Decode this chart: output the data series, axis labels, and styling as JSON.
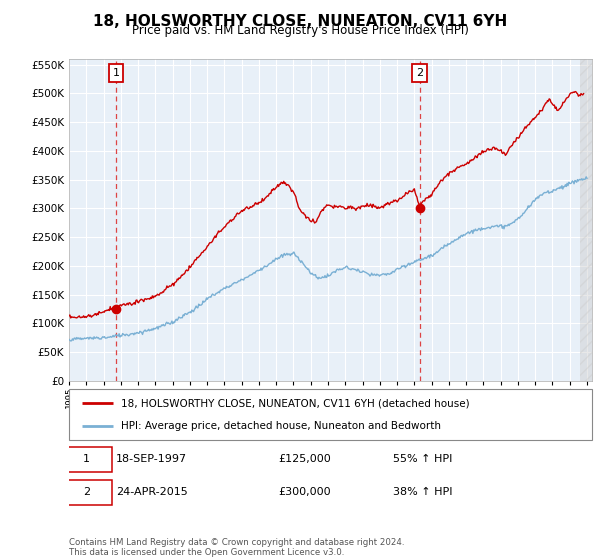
{
  "title": "18, HOLSWORTHY CLOSE, NUNEATON, CV11 6YH",
  "subtitle": "Price paid vs. HM Land Registry's House Price Index (HPI)",
  "legend_line1": "18, HOLSWORTHY CLOSE, NUNEATON, CV11 6YH (detached house)",
  "legend_line2": "HPI: Average price, detached house, Nuneaton and Bedworth",
  "annotation1_label": "1",
  "annotation1_date": "18-SEP-1997",
  "annotation1_price": "£125,000",
  "annotation1_hpi": "55% ↑ HPI",
  "annotation2_label": "2",
  "annotation2_date": "24-APR-2015",
  "annotation2_price": "£300,000",
  "annotation2_hpi": "38% ↑ HPI",
  "footer": "Contains HM Land Registry data © Crown copyright and database right 2024.\nThis data is licensed under the Open Government Licence v3.0.",
  "sale1_year": 1997.72,
  "sale1_value": 125000,
  "sale2_year": 2015.31,
  "sale2_value": 300000,
  "red_line_color": "#cc0000",
  "blue_line_color": "#7ab0d4",
  "plot_bg": "#e8f0f8",
  "ylim": [
    0,
    560000
  ],
  "xlim_start": 1995.0,
  "xlim_end": 2025.3,
  "hpi_anchors": [
    [
      1995.0,
      72000
    ],
    [
      1996.0,
      74000
    ],
    [
      1997.0,
      76000
    ],
    [
      1997.5,
      77000
    ],
    [
      1998.0,
      80000
    ],
    [
      1999.0,
      84000
    ],
    [
      2000.0,
      90000
    ],
    [
      2001.0,
      100000
    ],
    [
      2002.0,
      118000
    ],
    [
      2003.0,
      142000
    ],
    [
      2004.0,
      160000
    ],
    [
      2005.0,
      175000
    ],
    [
      2006.0,
      192000
    ],
    [
      2007.0,
      210000
    ],
    [
      2007.5,
      218000
    ],
    [
      2008.0,
      220000
    ],
    [
      2008.5,
      205000
    ],
    [
      2009.0,
      185000
    ],
    [
      2009.5,
      178000
    ],
    [
      2010.0,
      180000
    ],
    [
      2010.5,
      190000
    ],
    [
      2011.0,
      195000
    ],
    [
      2011.5,
      192000
    ],
    [
      2012.0,
      188000
    ],
    [
      2012.5,
      183000
    ],
    [
      2013.0,
      182000
    ],
    [
      2013.5,
      185000
    ],
    [
      2014.0,
      193000
    ],
    [
      2015.0,
      207000
    ],
    [
      2015.31,
      210000
    ],
    [
      2016.0,
      218000
    ],
    [
      2017.0,
      240000
    ],
    [
      2018.0,
      258000
    ],
    [
      2019.0,
      268000
    ],
    [
      2020.0,
      270000
    ],
    [
      2020.5,
      272000
    ],
    [
      2021.0,
      285000
    ],
    [
      2021.5,
      300000
    ],
    [
      2022.0,
      318000
    ],
    [
      2022.5,
      330000
    ],
    [
      2023.0,
      335000
    ],
    [
      2023.5,
      340000
    ],
    [
      2024.0,
      345000
    ],
    [
      2024.5,
      350000
    ],
    [
      2025.0,
      352000
    ]
  ],
  "red_anchors": [
    [
      1995.0,
      112000
    ],
    [
      1995.5,
      110000
    ],
    [
      1996.0,
      112000
    ],
    [
      1996.5,
      115000
    ],
    [
      1997.0,
      118000
    ],
    [
      1997.72,
      125000
    ],
    [
      1998.0,
      128000
    ],
    [
      1998.5,
      130000
    ],
    [
      1999.0,
      135000
    ],
    [
      2000.0,
      145000
    ],
    [
      2001.0,
      165000
    ],
    [
      2002.0,
      195000
    ],
    [
      2003.0,
      230000
    ],
    [
      2004.0,
      268000
    ],
    [
      2005.0,
      295000
    ],
    [
      2006.0,
      308000
    ],
    [
      2006.5,
      318000
    ],
    [
      2007.0,
      335000
    ],
    [
      2007.3,
      342000
    ],
    [
      2007.7,
      338000
    ],
    [
      2008.0,
      325000
    ],
    [
      2008.3,
      295000
    ],
    [
      2008.7,
      280000
    ],
    [
      2009.0,
      275000
    ],
    [
      2009.3,
      270000
    ],
    [
      2009.5,
      285000
    ],
    [
      2009.8,
      295000
    ],
    [
      2010.0,
      300000
    ],
    [
      2010.3,
      295000
    ],
    [
      2010.6,
      300000
    ],
    [
      2011.0,
      295000
    ],
    [
      2011.3,
      300000
    ],
    [
      2011.6,
      295000
    ],
    [
      2012.0,
      300000
    ],
    [
      2012.5,
      302000
    ],
    [
      2013.0,
      298000
    ],
    [
      2013.5,
      305000
    ],
    [
      2014.0,
      310000
    ],
    [
      2014.5,
      320000
    ],
    [
      2015.0,
      330000
    ],
    [
      2015.31,
      300000
    ],
    [
      2015.5,
      305000
    ],
    [
      2016.0,
      320000
    ],
    [
      2016.5,
      340000
    ],
    [
      2017.0,
      355000
    ],
    [
      2017.5,
      365000
    ],
    [
      2018.0,
      375000
    ],
    [
      2018.5,
      385000
    ],
    [
      2019.0,
      395000
    ],
    [
      2019.5,
      400000
    ],
    [
      2020.0,
      395000
    ],
    [
      2020.3,
      390000
    ],
    [
      2020.5,
      400000
    ],
    [
      2021.0,
      420000
    ],
    [
      2021.5,
      440000
    ],
    [
      2022.0,
      455000
    ],
    [
      2022.5,
      475000
    ],
    [
      2022.8,
      490000
    ],
    [
      2023.0,
      480000
    ],
    [
      2023.3,
      470000
    ],
    [
      2023.5,
      475000
    ],
    [
      2023.8,
      490000
    ],
    [
      2024.0,
      498000
    ],
    [
      2024.3,
      502000
    ],
    [
      2024.5,
      495000
    ],
    [
      2024.8,
      500000
    ]
  ]
}
